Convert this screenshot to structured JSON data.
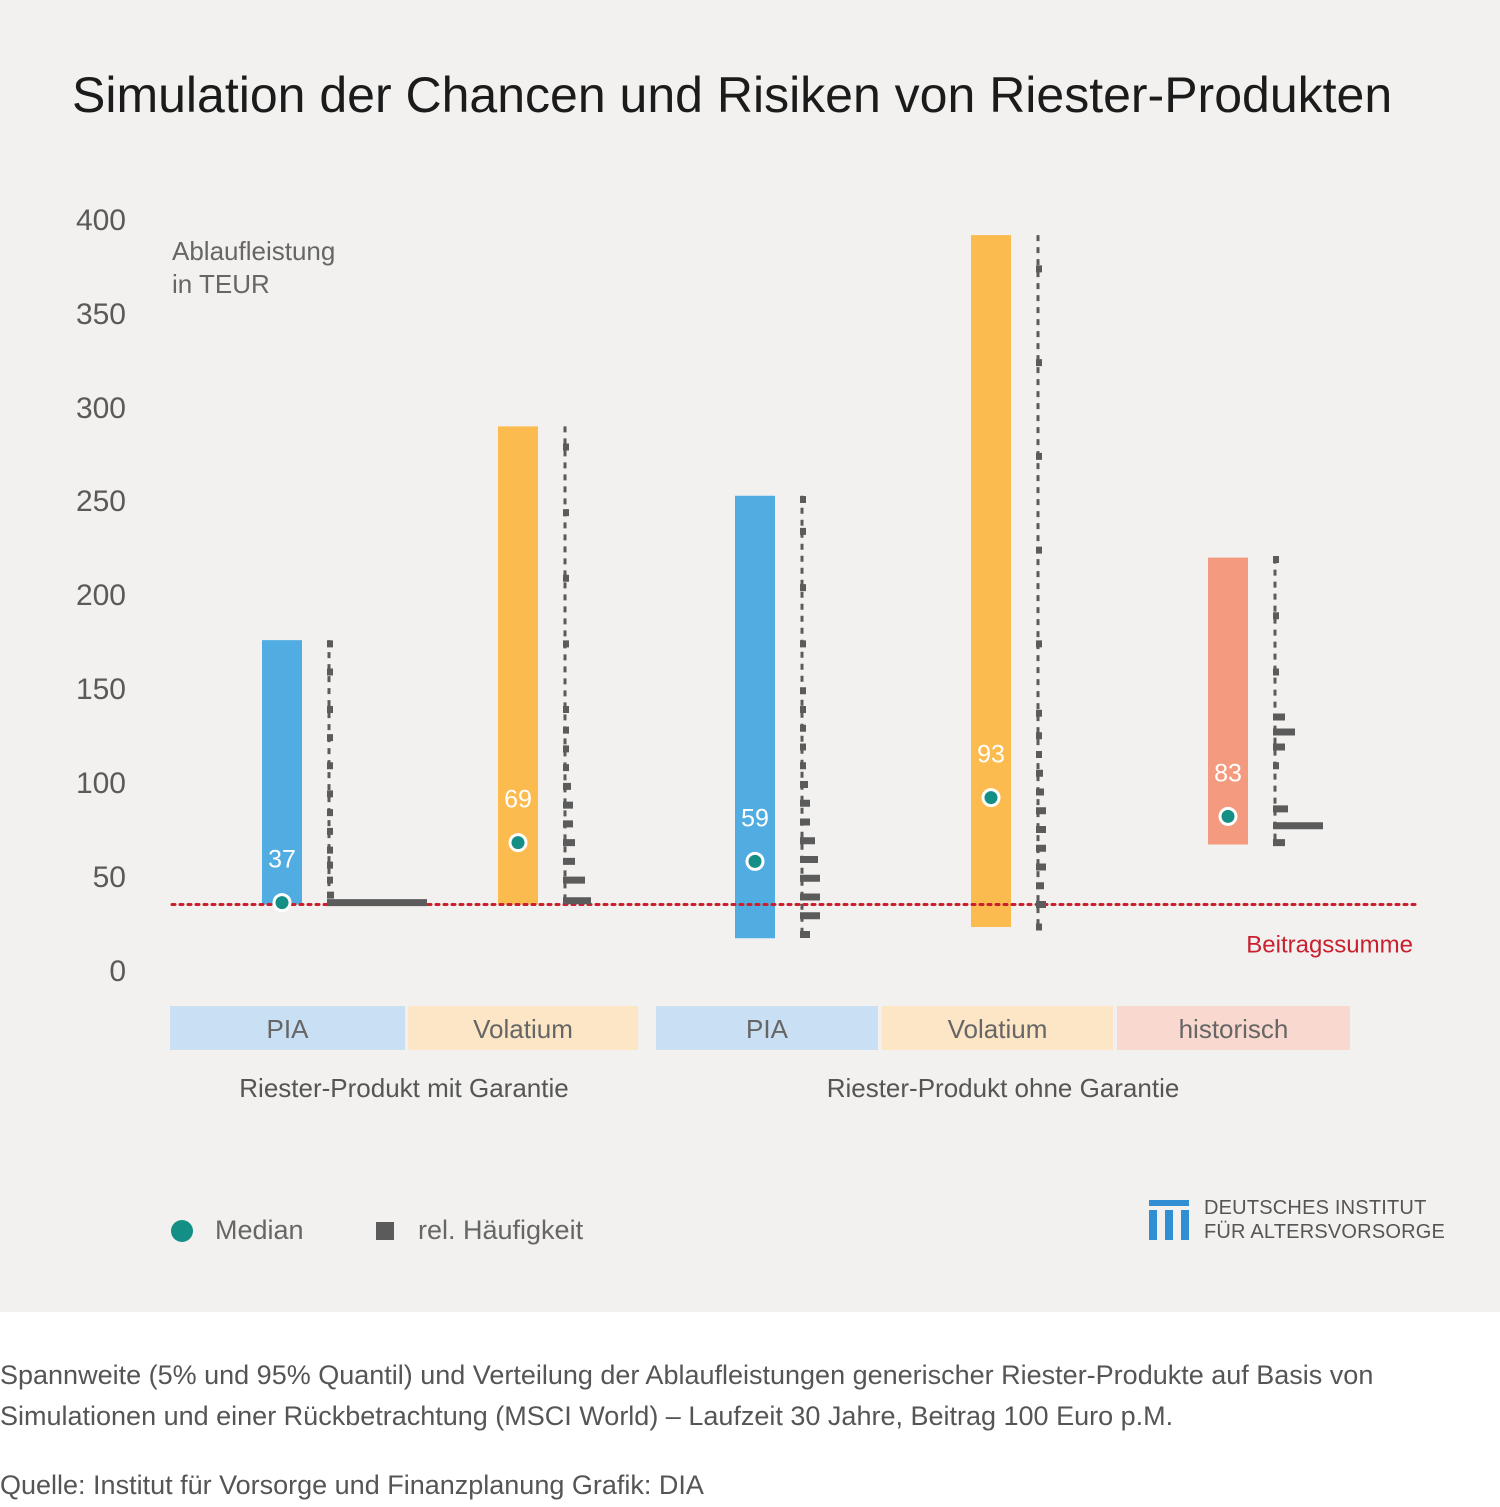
{
  "title": "Simulation der Chancen und Risiken von Riester-Produkten",
  "caption": "Spannweite (5% und 95% Quantil) und Verteilung der Ablaufleistungen generischer Riester-Produkte auf Basis von Simulationen und einer Rückbetrachtung (MSCI World) – Laufzeit 30 Jahre, Beitrag 100 Euro p.M.",
  "source": "Quelle: Institut für Vorsorge und Finanzplanung  Grafik: DIA",
  "legend": {
    "median": "Median",
    "frequency": "rel. Häufigkeit"
  },
  "logo": {
    "line1": "DEUTSCHES INSTITUT",
    "line2": "FÜR ALTERSVORSORGE"
  },
  "colors": {
    "blue": "#51ade1",
    "orange": "#fbbb4f",
    "salmon": "#f49a7f",
    "median": "#138f86",
    "reference": "#c8202f",
    "frequency": "#5b5b5b"
  },
  "chart_data": {
    "type": "bar",
    "title": "Simulation der Chancen und Risiken von Riester-Produkten",
    "ylabel": [
      "Ablaufleistung",
      "in TEUR"
    ],
    "yticks": [
      "400",
      "350",
      "300",
      "250",
      "200",
      "150",
      "100",
      "50",
      "0"
    ],
    "ylim": [
      0,
      400
    ],
    "grid": false,
    "reference_line": {
      "label": "Beitragssumme",
      "value": 36
    },
    "groups": [
      {
        "label": "Riester-Produkt mit Garantie",
        "categories": [
          "PIA",
          "Volatium"
        ]
      },
      {
        "label": "Riester-Produkt ohne Garantie",
        "categories": [
          "PIA",
          "Volatium",
          "historisch"
        ]
      }
    ],
    "series": [
      {
        "category": "PIA",
        "group": "Riester-Produkt mit Garantie",
        "color": "blue",
        "p5": 36,
        "p95": 177,
        "median": 37,
        "median_label": "37",
        "frequency": [
          [
            37,
            100
          ],
          [
            41,
            7
          ],
          [
            49,
            4
          ],
          [
            57,
            3
          ],
          [
            65,
            2
          ],
          [
            75,
            2
          ],
          [
            85,
            2
          ],
          [
            95,
            2
          ],
          [
            110,
            1
          ],
          [
            125,
            1
          ],
          [
            140,
            1
          ],
          [
            160,
            1
          ],
          [
            175,
            1
          ]
        ]
      },
      {
        "category": "Volatium",
        "group": "Riester-Produkt mit Garantie",
        "color": "orange",
        "p5": 36,
        "p95": 291,
        "median": 69,
        "median_label": "69",
        "frequency": [
          [
            38,
            28
          ],
          [
            49,
            22
          ],
          [
            59,
            12
          ],
          [
            69,
            12
          ],
          [
            79,
            10
          ],
          [
            89,
            10
          ],
          [
            99,
            8
          ],
          [
            109,
            6
          ],
          [
            119,
            6
          ],
          [
            129,
            5
          ],
          [
            140,
            5
          ],
          [
            175,
            2
          ],
          [
            210,
            2
          ],
          [
            245,
            2
          ],
          [
            280,
            2
          ]
        ]
      },
      {
        "category": "PIA",
        "group": "Riester-Produkt ohne Garantie",
        "color": "blue",
        "p5": 18,
        "p95": 254,
        "median": 59,
        "median_label": "59",
        "frequency": [
          [
            20,
            10
          ],
          [
            30,
            20
          ],
          [
            40,
            20
          ],
          [
            50,
            20
          ],
          [
            60,
            18
          ],
          [
            70,
            15
          ],
          [
            80,
            10
          ],
          [
            90,
            10
          ],
          [
            100,
            8
          ],
          [
            110,
            6
          ],
          [
            120,
            6
          ],
          [
            130,
            5
          ],
          [
            140,
            5
          ],
          [
            150,
            5
          ],
          [
            175,
            3
          ],
          [
            205,
            2
          ],
          [
            235,
            2
          ],
          [
            252,
            2
          ]
        ]
      },
      {
        "category": "Volatium",
        "group": "Riester-Produkt ohne Garantie",
        "color": "orange",
        "p5": 24,
        "p95": 393,
        "median": 93,
        "median_label": "93",
        "frequency": [
          [
            24,
            4
          ],
          [
            36,
            10
          ],
          [
            46,
            8
          ],
          [
            56,
            10
          ],
          [
            66,
            10
          ],
          [
            76,
            10
          ],
          [
            86,
            10
          ],
          [
            96,
            8
          ],
          [
            106,
            7
          ],
          [
            116,
            6
          ],
          [
            126,
            5
          ],
          [
            138,
            5
          ],
          [
            175,
            2
          ],
          [
            225,
            2
          ],
          [
            275,
            2
          ],
          [
            325,
            2
          ],
          [
            375,
            2
          ]
        ]
      },
      {
        "category": "historisch",
        "group": "Riester-Produkt ohne Garantie",
        "color": "salmon",
        "p5": 68,
        "p95": 221,
        "median": 83,
        "median_label": "83",
        "frequency": [
          [
            69,
            12
          ],
          [
            78,
            50
          ],
          [
            87,
            15
          ],
          [
            110,
            5
          ],
          [
            120,
            12
          ],
          [
            128,
            22
          ],
          [
            136,
            12
          ],
          [
            160,
            2
          ],
          [
            190,
            2
          ],
          [
            220,
            2
          ]
        ]
      }
    ]
  }
}
